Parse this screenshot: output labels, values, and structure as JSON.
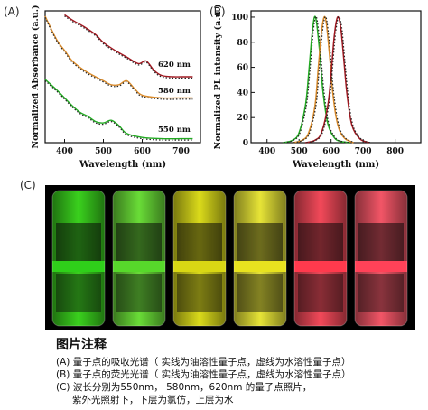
{
  "figure": {
    "panels": {
      "a_label": "(A)",
      "b_label": "(B)",
      "c_label": "(C)"
    },
    "caption": {
      "title": "图片注释",
      "lines": [
        "(A) 量子点的吸收光谱（ 实线为油溶性量子点，虚线为水溶性量子点）",
        "(B) 量子点的荧光光谱（ 实线为油溶性量子点，虚线为水溶性量子点）",
        "(C) 波长分别为550nm， 580nm，620nm 的量子点照片，",
        "紫外光照射下，下层为氯仿，上层为水"
      ]
    },
    "photo_vials": [
      {
        "top_color": "#3ddc1f",
        "bottom_color": "#2fcf1a"
      },
      {
        "top_color": "#6fe83a",
        "bottom_color": "#57d82b"
      },
      {
        "top_color": "#e6e61c",
        "bottom_color": "#d9d714"
      },
      {
        "top_color": "#f3f03a",
        "bottom_color": "#e8e21f"
      },
      {
        "top_color": "#ff4d5e",
        "bottom_color": "#ff3a4d"
      },
      {
        "top_color": "#ff5a6c",
        "bottom_color": "#ff4258"
      }
    ]
  },
  "chart_data": [
    {
      "type": "line",
      "title": "",
      "xlabel": "Wavelength (nm)",
      "ylabel": "Normalized Absorbance (a.u.)",
      "xlim": [
        350,
        750
      ],
      "xticks": [
        400,
        500,
        600,
        700
      ],
      "grid": false,
      "series": [
        {
          "name": "550 nm",
          "color": "#22aa22",
          "x": [
            350,
            380,
            400,
            420,
            440,
            460,
            480,
            500,
            520,
            540,
            560,
            600,
            650,
            700,
            730
          ],
          "y": [
            0.48,
            0.4,
            0.34,
            0.28,
            0.23,
            0.2,
            0.16,
            0.15,
            0.17,
            0.13,
            0.07,
            0.04,
            0.03,
            0.03,
            0.03
          ]
        },
        {
          "name": "580 nm",
          "color": "#d98a2a",
          "x": [
            350,
            380,
            400,
            420,
            450,
            480,
            500,
            520,
            540,
            560,
            580,
            600,
            650,
            700,
            730
          ],
          "y": [
            0.96,
            0.78,
            0.7,
            0.62,
            0.55,
            0.5,
            0.47,
            0.44,
            0.44,
            0.47,
            0.41,
            0.36,
            0.34,
            0.34,
            0.34
          ]
        },
        {
          "name": "620 nm",
          "color": "#a01820",
          "x": [
            400,
            420,
            450,
            480,
            500,
            530,
            560,
            590,
            610,
            630,
            650,
            680,
            700,
            730
          ],
          "y": [
            0.97,
            0.93,
            0.88,
            0.82,
            0.76,
            0.7,
            0.65,
            0.6,
            0.62,
            0.55,
            0.51,
            0.5,
            0.5,
            0.5
          ]
        }
      ],
      "annotations": [
        "620 nm",
        "580 nm",
        "550 nm"
      ]
    },
    {
      "type": "line",
      "title": "",
      "xlabel": "Wavelength (nm)",
      "ylabel": "Normalized PL intensity (a.u.)",
      "xlim": [
        350,
        880
      ],
      "ylim": [
        0,
        105
      ],
      "xticks": [
        400,
        500,
        600,
        700,
        800
      ],
      "yticks": [
        0,
        20,
        40,
        60,
        80,
        100
      ],
      "grid": false,
      "series": [
        {
          "name": "550 nm",
          "color": "#22aa22",
          "x": [
            450,
            480,
            500,
            520,
            530,
            540,
            548,
            555,
            565,
            575,
            590,
            610,
            630,
            660
          ],
          "y": [
            0,
            2,
            8,
            30,
            55,
            85,
            100,
            95,
            70,
            40,
            15,
            4,
            1,
            0
          ]
        },
        {
          "name": "580 nm",
          "color": "#d98a2a",
          "x": [
            480,
            510,
            530,
            550,
            560,
            570,
            578,
            585,
            595,
            605,
            620,
            640,
            670
          ],
          "y": [
            0,
            2,
            8,
            30,
            60,
            88,
            100,
            95,
            70,
            40,
            15,
            4,
            0
          ]
        },
        {
          "name": "620 nm",
          "color": "#a01820",
          "x": [
            520,
            550,
            570,
            590,
            600,
            610,
            620,
            630,
            640,
            650,
            665,
            690,
            720
          ],
          "y": [
            0,
            2,
            8,
            30,
            55,
            85,
            100,
            92,
            65,
            38,
            14,
            3,
            0
          ]
        }
      ]
    }
  ]
}
